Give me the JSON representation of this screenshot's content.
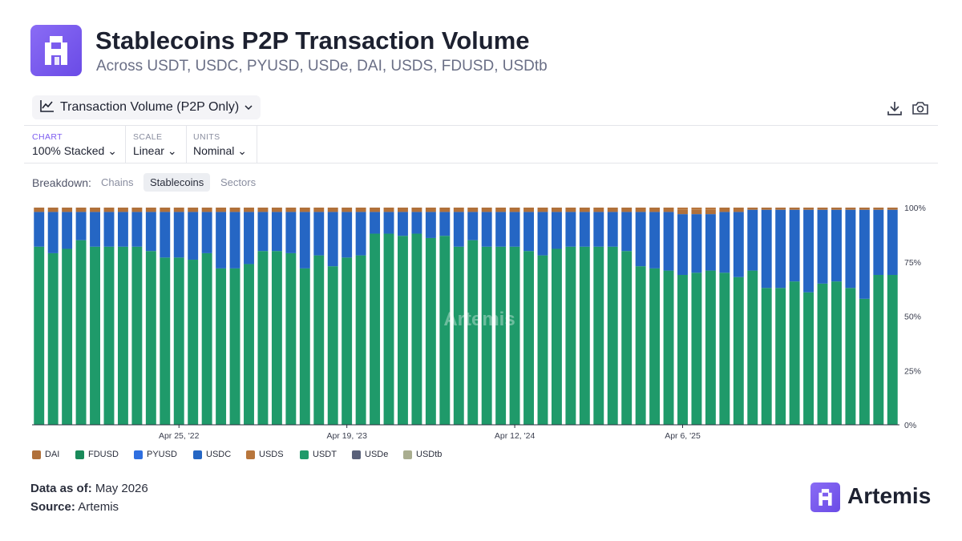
{
  "header": {
    "title": "Stablecoins P2P Transaction Volume",
    "subtitle": "Across USDT, USDC, PYUSD, USDe, DAI, USDS, FDUSD, USDtb"
  },
  "toolbar": {
    "metric_label": "Transaction Volume (P2P Only)",
    "download_icon": "download-icon",
    "camera_icon": "camera-icon"
  },
  "controls": {
    "chart": {
      "label": "CHART",
      "value": "100% Stacked"
    },
    "scale": {
      "label": "SCALE",
      "value": "Linear"
    },
    "units": {
      "label": "UNITS",
      "value": "Nominal"
    }
  },
  "breakdown": {
    "label": "Breakdown:",
    "options": [
      "Chains",
      "Stablecoins",
      "Sectors"
    ],
    "selected": "Stablecoins"
  },
  "colors": {
    "accent": "#7c5cf0",
    "DAI": "#b0703a",
    "FDUSD": "#1a8a5a",
    "PYUSD": "#2f6fe0",
    "USDC": "#2566c4",
    "USDS": "#b8763c",
    "USDT": "#1f9a6a",
    "USDe": "#596079",
    "USDtb": "#a9ad8f"
  },
  "watermark": "Artemis",
  "footer": {
    "as_of_label": "Data as of:",
    "as_of_value": "May 2026",
    "source_label": "Source:",
    "source_value": "Artemis",
    "brand": "Artemis"
  },
  "chart_data": {
    "type": "bar",
    "stacking": "percent",
    "x_tick_labels": [
      "Apr 25, '22",
      "Apr 19, '23",
      "Apr 12, '24",
      "Apr 6, '25"
    ],
    "x_tick_bar_index": [
      10,
      22,
      34,
      46
    ],
    "y_tick_labels": [
      "0%",
      "25%",
      "50%",
      "75%",
      "100%"
    ],
    "ylim": [
      0,
      100
    ],
    "grid": false,
    "legend_position": "bottom",
    "legend": [
      "DAI",
      "FDUSD",
      "PYUSD",
      "USDC",
      "USDS",
      "USDT",
      "USDe",
      "USDtb"
    ],
    "series": [
      {
        "name": "USDT",
        "values": [
          82,
          79,
          81,
          85,
          82,
          82,
          82,
          82,
          80,
          77,
          77,
          76,
          79,
          72,
          72,
          74,
          80,
          80,
          79,
          72,
          78,
          73,
          77,
          78,
          88,
          88,
          87,
          88,
          86,
          87,
          82,
          85,
          82,
          82,
          82,
          80,
          78,
          81,
          82,
          82,
          82,
          82,
          80,
          73,
          72,
          71,
          69,
          70,
          71,
          70,
          68,
          71,
          63,
          63,
          66,
          61,
          65,
          66,
          63,
          58,
          69,
          69
        ]
      },
      {
        "name": "USDC",
        "values": [
          16,
          19,
          17,
          13,
          16,
          16,
          16,
          16,
          18,
          21,
          21,
          22,
          19,
          26,
          26,
          24,
          18,
          18,
          19,
          26,
          20,
          25,
          21,
          20,
          10,
          10,
          11,
          10,
          12,
          11,
          16,
          13,
          16,
          16,
          16,
          18,
          20,
          17,
          16,
          16,
          16,
          16,
          18,
          25,
          26,
          27,
          28,
          27,
          26,
          28,
          30,
          28,
          36,
          36,
          33,
          38,
          34,
          33,
          36,
          41,
          30,
          30
        ]
      },
      {
        "name": "DAI",
        "values": [
          2,
          2,
          2,
          2,
          2,
          2,
          2,
          2,
          2,
          2,
          2,
          2,
          2,
          2,
          2,
          2,
          2,
          2,
          2,
          2,
          2,
          2,
          2,
          2,
          2,
          2,
          2,
          2,
          2,
          2,
          2,
          2,
          2,
          2,
          2,
          2,
          2,
          2,
          2,
          2,
          2,
          2,
          2,
          2,
          2,
          2,
          2,
          2,
          2,
          2,
          2,
          1,
          1,
          1,
          1,
          1,
          1,
          1,
          1,
          1,
          1,
          1
        ]
      },
      {
        "name": "USDS",
        "values": [
          0,
          0,
          0,
          0,
          0,
          0,
          0,
          0,
          0,
          0,
          0,
          0,
          0,
          0,
          0,
          0,
          0,
          0,
          0,
          0,
          0,
          0,
          0,
          0,
          0,
          0,
          0,
          0,
          0,
          0,
          0,
          0,
          0,
          0,
          0,
          0,
          0,
          0,
          0,
          0,
          0,
          0,
          0,
          0,
          0,
          0,
          1,
          1,
          1,
          0,
          0,
          0,
          0,
          0,
          0,
          0,
          0,
          0,
          0,
          0,
          0,
          0
        ]
      }
    ]
  }
}
